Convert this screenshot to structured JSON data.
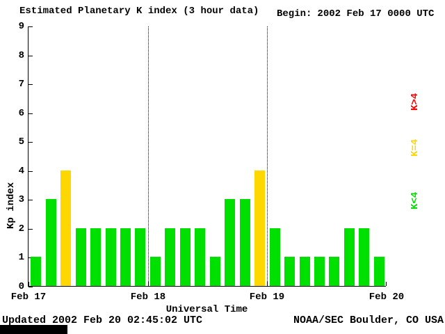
{
  "header": {
    "title": "Estimated Planetary K index (3 hour data)",
    "begin_label": "Begin:",
    "begin_value": "2002 Feb 17 0000 UTC"
  },
  "footer": {
    "updated": "Updated 2002 Feb 20 02:45:02 UTC",
    "credit": "NOAA/SEC Boulder, CO USA"
  },
  "chart_data": {
    "type": "bar",
    "title": "Estimated Planetary K index (3 hour data)",
    "xlabel": "Universal Time",
    "ylabel": "Kp index",
    "begin": "2002 Feb 17 0000 UTC",
    "interval_hours": 3,
    "bars_per_day": 8,
    "ylim": [
      0,
      9
    ],
    "yticks": [
      0,
      1,
      2,
      3,
      4,
      5,
      6,
      7,
      8,
      9
    ],
    "xticklabels": [
      "Feb 17",
      "Feb 18",
      "Feb 19",
      "Feb 20"
    ],
    "grid": "vertical dotted lines at day boundaries",
    "values": [
      1,
      3,
      4,
      2,
      2,
      2,
      2,
      2,
      1,
      2,
      2,
      2,
      1,
      3,
      3,
      4,
      2,
      1,
      1,
      1,
      1,
      2,
      2,
      1
    ],
    "days": [
      {
        "day": "Feb 17",
        "values": [
          1,
          3,
          4,
          2,
          2,
          2,
          2,
          2
        ]
      },
      {
        "day": "Feb 18",
        "values": [
          1,
          2,
          2,
          2,
          1,
          3,
          3,
          4
        ]
      },
      {
        "day": "Feb 19",
        "values": [
          2,
          1,
          1,
          1,
          1,
          2,
          2,
          1
        ]
      }
    ],
    "colors": {
      "k_lt_4": "#00e000",
      "k_eq_4": "#ffd700",
      "k_gt_4": "#ff0000"
    },
    "legend_position": "right, vertical text",
    "legend": [
      {
        "label": "K>4",
        "color": "#ff0000"
      },
      {
        "label": "K=4",
        "color": "#ffd700"
      },
      {
        "label": "K<4",
        "color": "#00e000"
      }
    ]
  }
}
